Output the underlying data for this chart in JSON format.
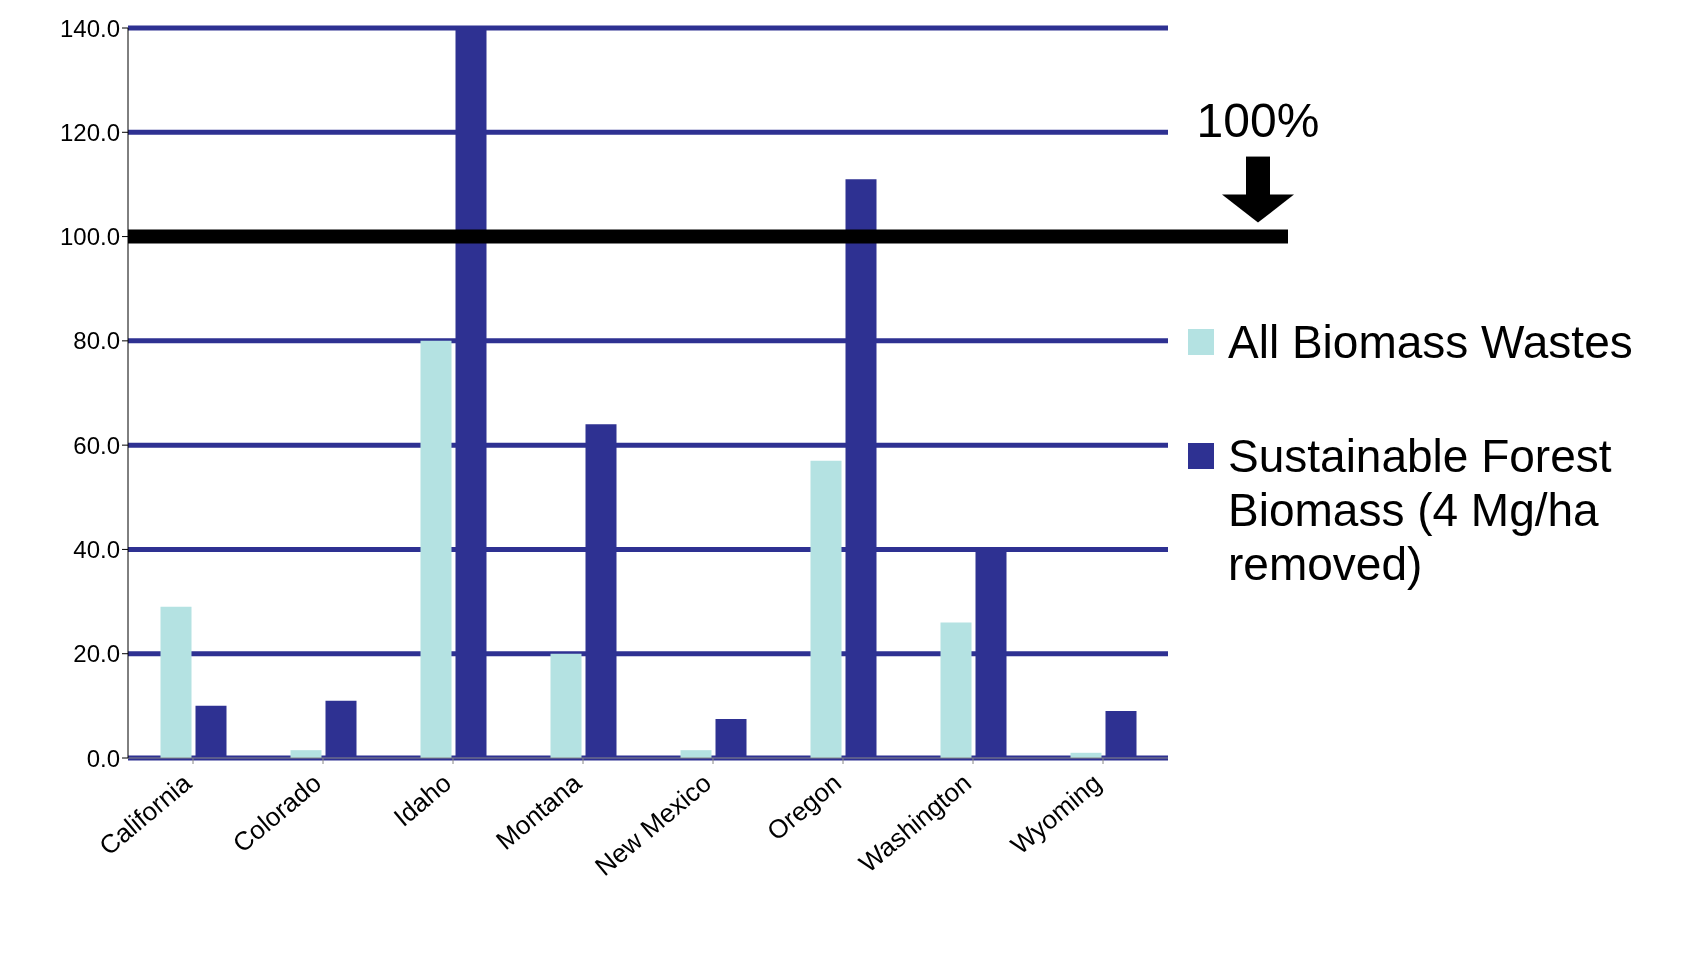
{
  "chart_data": {
    "type": "bar",
    "categories": [
      "California",
      "Colorado",
      "Idaho",
      "Montana",
      "New Mexico",
      "Oregon",
      "Washington",
      "Wyoming"
    ],
    "series": [
      {
        "name": "All Biomass Wastes",
        "color": "#b4e2e2",
        "values": [
          29,
          1.5,
          80,
          20,
          1.5,
          57,
          26,
          1
        ]
      },
      {
        "name": "Sustainable Forest Biomass (4 Mg/ha removed)",
        "color": "#2e3192",
        "values": [
          10,
          11,
          140,
          64,
          7.5,
          111,
          40,
          9
        ]
      }
    ],
    "ylim": [
      0,
      140
    ],
    "yticks": [
      {
        "value": 0,
        "label": "0.0"
      },
      {
        "value": 20,
        "label": "20.0"
      },
      {
        "value": 40,
        "label": "40.0"
      },
      {
        "value": 60,
        "label": "60.0"
      },
      {
        "value": 80,
        "label": "80.0"
      },
      {
        "value": 100,
        "label": "100.0"
      },
      {
        "value": 120,
        "label": "120.0"
      },
      {
        "value": 140,
        "label": "140.0"
      }
    ],
    "grid": "y",
    "legend": "right",
    "ref_lines": [
      {
        "axis": "y",
        "value": 100,
        "label": "100%",
        "color": "#000000"
      }
    ]
  }
}
